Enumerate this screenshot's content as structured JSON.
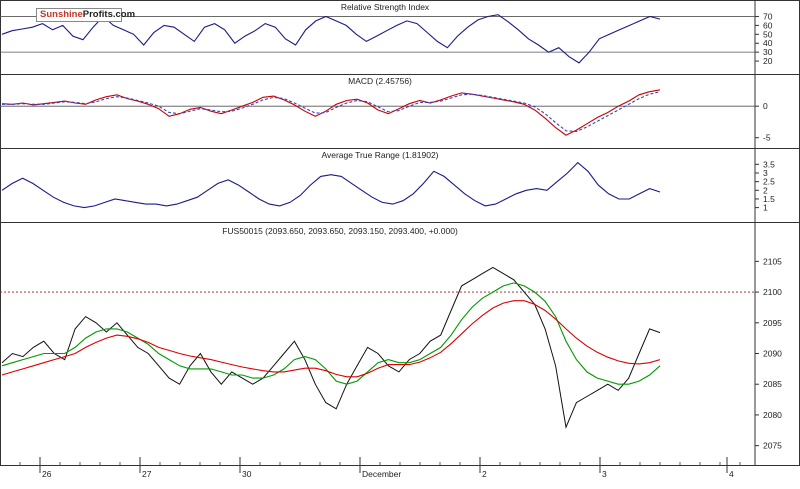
{
  "brand": {
    "part1": "Sunshine",
    "part2": "Profits.com"
  },
  "chart_data": [
    {
      "type": "line",
      "title": "Relative Strength Index",
      "y_ticks": [
        70,
        60,
        50,
        40,
        30,
        20
      ],
      "ylim": [
        10,
        75
      ],
      "reference_lines": [
        70,
        30
      ],
      "series": [
        {
          "values": [
            50,
            54,
            56,
            58,
            62,
            55,
            60,
            48,
            44,
            58,
            70,
            60,
            55,
            50,
            38,
            52,
            60,
            58,
            50,
            42,
            58,
            62,
            55,
            40,
            48,
            54,
            62,
            58,
            45,
            38,
            55,
            65,
            70,
            65,
            60,
            50,
            42,
            48,
            54,
            60,
            65,
            62,
            52,
            42,
            35,
            48,
            58,
            66,
            70,
            72,
            64,
            55,
            45,
            38,
            30,
            35,
            25,
            18,
            30,
            45,
            50,
            55,
            60,
            65,
            70,
            67
          ]
        }
      ]
    },
    {
      "type": "line",
      "title": "MACD (2.45756)",
      "y_ticks": [
        0,
        -5
      ],
      "ylim": [
        -6,
        3.2
      ],
      "reference_lines": [
        0
      ],
      "series": [
        {
          "values": [
            0.4,
            0.3,
            0.5,
            0.2,
            0.4,
            0.6,
            0.8,
            0.5,
            0.3,
            1.0,
            1.5,
            1.8,
            1.2,
            0.8,
            0.3,
            -0.4,
            -1.6,
            -1.2,
            -0.5,
            -0.2,
            -0.8,
            -1.2,
            -0.6,
            0.0,
            0.6,
            1.4,
            1.6,
            1.0,
            0.2,
            -0.8,
            -1.6,
            -0.8,
            0.3,
            0.9,
            1.1,
            0.5,
            -0.6,
            -1.2,
            -0.4,
            0.4,
            0.9,
            0.5,
            1.0,
            1.6,
            2.1,
            1.9,
            1.6,
            1.3,
            1.0,
            0.7,
            0.3,
            -0.6,
            -1.9,
            -3.4,
            -4.6,
            -3.8,
            -2.8,
            -1.8,
            -1.0,
            0.0,
            0.8,
            1.8,
            2.3,
            2.6
          ]
        },
        {
          "values": [
            0.3,
            0.3,
            0.4,
            0.3,
            0.3,
            0.5,
            0.7,
            0.6,
            0.4,
            0.7,
            1.2,
            1.5,
            1.3,
            0.9,
            0.5,
            0.0,
            -1.0,
            -1.2,
            -0.8,
            -0.4,
            -0.6,
            -0.9,
            -0.8,
            -0.3,
            0.3,
            1.0,
            1.4,
            1.2,
            0.5,
            -0.3,
            -1.1,
            -1.0,
            -0.2,
            0.5,
            0.9,
            0.7,
            -0.1,
            -0.9,
            -0.7,
            0.0,
            0.6,
            0.6,
            0.8,
            1.3,
            1.8,
            1.9,
            1.7,
            1.4,
            1.1,
            0.8,
            0.5,
            -0.1,
            -1.2,
            -2.6,
            -3.9,
            -4.0,
            -3.3,
            -2.4,
            -1.5,
            -0.6,
            0.3,
            1.2,
            1.9,
            2.3
          ]
        }
      ]
    },
    {
      "type": "line",
      "title": "Average True Range (1.81902)",
      "y_ticks": [
        3.5,
        3.0,
        2.5,
        2.0,
        1.5,
        1.0
      ],
      "ylim": [
        0.4,
        3.75
      ],
      "series": [
        {
          "values": [
            2.0,
            2.4,
            2.7,
            2.4,
            2.0,
            1.6,
            1.3,
            1.1,
            1.0,
            1.1,
            1.3,
            1.5,
            1.4,
            1.3,
            1.2,
            1.2,
            1.1,
            1.2,
            1.4,
            1.6,
            2.0,
            2.4,
            2.6,
            2.3,
            1.9,
            1.5,
            1.2,
            1.1,
            1.3,
            1.7,
            2.3,
            2.8,
            2.9,
            2.8,
            2.4,
            2.0,
            1.6,
            1.3,
            1.2,
            1.4,
            1.8,
            2.4,
            3.1,
            2.8,
            2.3,
            1.8,
            1.4,
            1.1,
            1.2,
            1.5,
            1.8,
            2.0,
            2.1,
            2.0,
            2.5,
            3.0,
            3.6,
            3.1,
            2.3,
            1.8,
            1.5,
            1.5,
            1.8,
            2.1,
            1.9
          ]
        }
      ]
    },
    {
      "type": "line",
      "title": "FUS50015 (2093.650, 2093.650, 2093.150, 2093.400, +0.000)",
      "x_tick_labels": [
        "26",
        "27",
        "30",
        "December",
        "2",
        "3",
        "4"
      ],
      "y_ticks": [
        2105,
        2100,
        2095,
        2090,
        2085,
        2080,
        2075
      ],
      "ylim": [
        2072.5,
        2107.5
      ],
      "reference_lines": [
        2100
      ],
      "series": [
        {
          "values": [
            2088.5,
            2090,
            2089.5,
            2091,
            2092,
            2090,
            2089,
            2094,
            2096,
            2095,
            2093.5,
            2095,
            2093,
            2091,
            2090,
            2088,
            2086,
            2085,
            2088,
            2090,
            2087,
            2085,
            2087,
            2086,
            2085,
            2086,
            2088,
            2090,
            2092,
            2089,
            2085,
            2082,
            2081,
            2085,
            2088,
            2091,
            2090,
            2088,
            2087,
            2089,
            2090,
            2092,
            2093,
            2097,
            2101,
            2102,
            2103,
            2104,
            2103,
            2102,
            2100,
            2098,
            2094,
            2088,
            2078,
            2082,
            2083,
            2084,
            2085,
            2084,
            2086,
            2090,
            2094,
            2093.4
          ]
        },
        {
          "values": [
            2088,
            2088.5,
            2089,
            2089.5,
            2090,
            2090,
            2090,
            2091,
            2092.5,
            2093.5,
            2094,
            2094,
            2093.5,
            2092.5,
            2091.5,
            2090,
            2089,
            2088,
            2087.5,
            2087.5,
            2087.5,
            2087,
            2086.5,
            2086.5,
            2086,
            2086,
            2086.5,
            2087.5,
            2089,
            2089.5,
            2089,
            2087.5,
            2085.5,
            2085,
            2085.5,
            2087,
            2088.5,
            2089,
            2088.5,
            2088.5,
            2089,
            2090,
            2091,
            2093,
            2095.5,
            2097.5,
            2099,
            2100,
            2101,
            2101.5,
            2101,
            2100,
            2098.5,
            2096,
            2092,
            2089,
            2087,
            2086,
            2085.5,
            2085,
            2085,
            2085.5,
            2086.5,
            2088
          ]
        },
        {
          "values": [
            2086.5,
            2087,
            2087.5,
            2088,
            2088.5,
            2089,
            2089.5,
            2090,
            2091,
            2091.8,
            2092.5,
            2093,
            2092.8,
            2092.4,
            2091.8,
            2091,
            2090.5,
            2090,
            2089.6,
            2089.3,
            2089,
            2088.6,
            2088.2,
            2087.8,
            2087.5,
            2087.2,
            2087,
            2087,
            2087.3,
            2087.6,
            2087.6,
            2087.2,
            2086.6,
            2086.2,
            2086.2,
            2086.8,
            2087.6,
            2088.2,
            2088.2,
            2088.2,
            2088.6,
            2089.3,
            2090.2,
            2091.6,
            2093.2,
            2094.8,
            2096.2,
            2097.4,
            2098.2,
            2098.6,
            2098.6,
            2098,
            2097,
            2095.6,
            2094,
            2092.5,
            2091.2,
            2090.2,
            2089.4,
            2088.8,
            2088.4,
            2088.3,
            2088.5,
            2089
          ]
        }
      ]
    }
  ]
}
